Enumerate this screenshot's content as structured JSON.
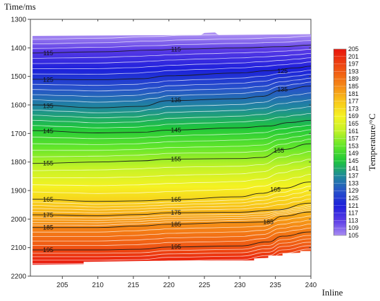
{
  "chart_data": {
    "type": "heatmap",
    "title": "",
    "ylabel": "Time/ms",
    "xlabel": "Inline",
    "colorbar_label": "Temperature/°C",
    "x_ticks": [
      205,
      210,
      215,
      220,
      225,
      230,
      235,
      240
    ],
    "y_ticks": [
      1300,
      1400,
      1500,
      1600,
      1700,
      1800,
      1900,
      2000,
      2100,
      2200
    ],
    "xlim": [
      200.5,
      240
    ],
    "ylim": [
      1300,
      2200
    ],
    "y_inverted": true,
    "colorbar_ticks": [
      205,
      201,
      197,
      193,
      189,
      185,
      181,
      177,
      173,
      169,
      165,
      161,
      157,
      153,
      149,
      145,
      141,
      137,
      133,
      129,
      125,
      121,
      117,
      113,
      109,
      105
    ],
    "colorbar_range": [
      105,
      205
    ],
    "colormap_stops": [
      {
        "value": 105,
        "color": "#a98cf2"
      },
      {
        "value": 113,
        "color": "#5a3be6"
      },
      {
        "value": 121,
        "color": "#1c1fdb"
      },
      {
        "value": 129,
        "color": "#2753c9"
      },
      {
        "value": 137,
        "color": "#1f8a9a"
      },
      {
        "value": 145,
        "color": "#1fc73a"
      },
      {
        "value": 153,
        "color": "#62e62a"
      },
      {
        "value": 161,
        "color": "#c2f227"
      },
      {
        "value": 169,
        "color": "#f5f222"
      },
      {
        "value": 177,
        "color": "#f8c61a"
      },
      {
        "value": 185,
        "color": "#f58a16"
      },
      {
        "value": 193,
        "color": "#f05a14"
      },
      {
        "value": 205,
        "color": "#e8140c"
      }
    ],
    "data_region": {
      "top_time_ms": 1355,
      "bottom_time_ms": 2160,
      "top_value_c": 107,
      "bottom_value_c": 201
    },
    "contours": [
      {
        "value": 115,
        "label": "115",
        "points": [
          [
            201,
            1418
          ],
          [
            210,
            1414
          ],
          [
            218,
            1408
          ],
          [
            222,
            1404
          ],
          [
            230,
            1400
          ],
          [
            236,
            1396
          ],
          [
            240,
            1390
          ]
        ],
        "label_at": [
          [
            203,
            1418
          ],
          [
            221,
            1405
          ]
        ]
      },
      {
        "value": 125,
        "label": "125",
        "points": [
          [
            201,
            1510
          ],
          [
            210,
            1512
          ],
          [
            216,
            1508
          ],
          [
            220,
            1498
          ],
          [
            230,
            1488
          ],
          [
            234,
            1480
          ],
          [
            238,
            1470
          ],
          [
            240,
            1464
          ]
        ],
        "label_at": [
          [
            203,
            1512
          ],
          [
            236,
            1482
          ]
        ]
      },
      {
        "value": 135,
        "label": "135",
        "points": [
          [
            201,
            1600
          ],
          [
            210,
            1610
          ],
          [
            216,
            1605
          ],
          [
            220,
            1585
          ],
          [
            230,
            1578
          ],
          [
            233,
            1570
          ],
          [
            236,
            1548
          ],
          [
            240,
            1534
          ]
        ],
        "label_at": [
          [
            203,
            1604
          ],
          [
            221,
            1583
          ],
          [
            236,
            1546
          ]
        ]
      },
      {
        "value": 145,
        "label": "145",
        "points": [
          [
            201,
            1690
          ],
          [
            210,
            1698
          ],
          [
            216,
            1696
          ],
          [
            220,
            1688
          ],
          [
            230,
            1680
          ],
          [
            234,
            1674
          ],
          [
            237,
            1662
          ],
          [
            240,
            1654
          ]
        ],
        "label_at": [
          [
            203,
            1692
          ],
          [
            221,
            1688
          ]
        ]
      },
      {
        "value": 155,
        "label": "155",
        "points": [
          [
            201,
            1805
          ],
          [
            210,
            1800
          ],
          [
            216,
            1796
          ],
          [
            220,
            1790
          ],
          [
            230,
            1788
          ],
          [
            233,
            1784
          ],
          [
            236,
            1756
          ],
          [
            240,
            1736
          ]
        ],
        "label_at": [
          [
            203,
            1805
          ],
          [
            221,
            1790
          ],
          [
            235.5,
            1760
          ]
        ]
      },
      {
        "value": 165,
        "label": "165",
        "points": [
          [
            201,
            1930
          ],
          [
            210,
            1938
          ],
          [
            216,
            1936
          ],
          [
            220,
            1932
          ],
          [
            230,
            1922
          ],
          [
            233,
            1910
          ],
          [
            236,
            1892
          ],
          [
            240,
            1870
          ]
        ],
        "label_at": [
          [
            203,
            1932
          ],
          [
            221,
            1932
          ],
          [
            235,
            1896
          ]
        ]
      },
      {
        "value": 175,
        "label": "175",
        "points": [
          [
            201,
            1985
          ],
          [
            210,
            1988
          ],
          [
            216,
            1984
          ],
          [
            220,
            1978
          ],
          [
            230,
            1976
          ],
          [
            235,
            1968
          ],
          [
            240,
            1944
          ]
        ],
        "label_at": [
          [
            203,
            1986
          ],
          [
            221,
            1978
          ]
        ]
      },
      {
        "value": 185,
        "label": "185",
        "points": [
          [
            201,
            2030
          ],
          [
            210,
            2030
          ],
          [
            216,
            2024
          ],
          [
            220,
            2018
          ],
          [
            230,
            2012
          ],
          [
            234,
            2010
          ],
          [
            236,
            1990
          ],
          [
            240,
            1975
          ]
        ],
        "label_at": [
          [
            203,
            2030
          ],
          [
            221,
            2018
          ],
          [
            234,
            2010
          ]
        ]
      },
      {
        "value": 195,
        "label": "195",
        "points": [
          [
            201,
            2108
          ],
          [
            210,
            2108
          ],
          [
            216,
            2106
          ],
          [
            220,
            2098
          ],
          [
            230,
            2094
          ],
          [
            234,
            2080
          ],
          [
            236,
            2060
          ],
          [
            240,
            2045
          ]
        ],
        "label_at": [
          [
            203,
            2108
          ],
          [
            221,
            2097
          ]
        ]
      }
    ]
  }
}
